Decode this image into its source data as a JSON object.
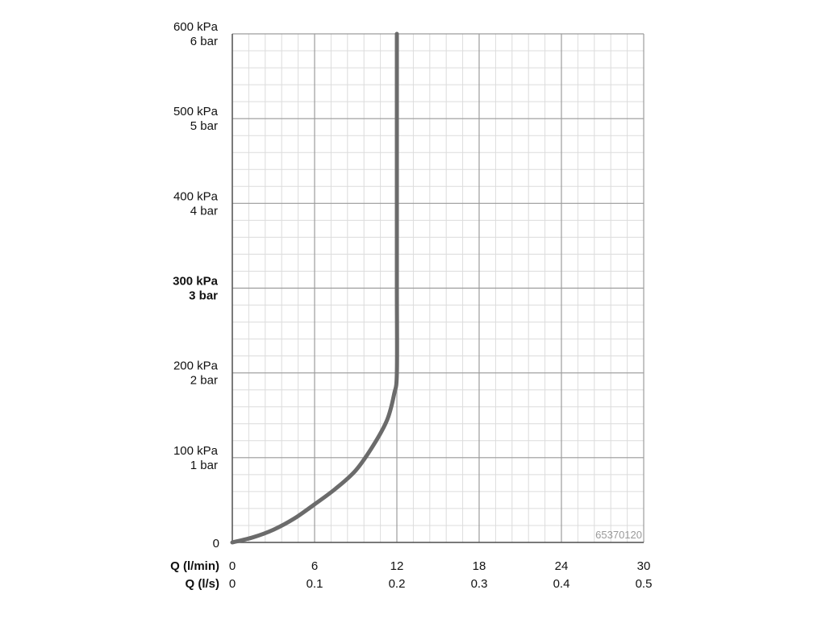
{
  "chart_data": {
    "type": "line",
    "title": "",
    "grid": true,
    "x_axis": {
      "range": [
        0,
        30
      ],
      "major_step": 6,
      "minor_step": 1.2,
      "primary_label": "Q (l/min)",
      "primary_ticks": [
        "0",
        "6",
        "12",
        "18",
        "24",
        "30"
      ],
      "secondary_label": "Q (l/s)",
      "secondary_ticks": [
        "0",
        "0.1",
        "0.2",
        "0.3",
        "0.4",
        "0.5"
      ]
    },
    "y_axis": {
      "range": [
        0,
        600
      ],
      "major_step": 100,
      "minor_step": 20,
      "zero_label": "0",
      "ticks": [
        {
          "value": 100,
          "kpa": "100 kPa",
          "bar": "1 bar",
          "bold": false
        },
        {
          "value": 200,
          "kpa": "200 kPa",
          "bar": "2 bar",
          "bold": false
        },
        {
          "value": 300,
          "kpa": "300 kPa",
          "bar": "3 bar",
          "bold": true
        },
        {
          "value": 400,
          "kpa": "400 kPa",
          "bar": "4 bar",
          "bold": false
        },
        {
          "value": 500,
          "kpa": "500 kPa",
          "bar": "5 bar",
          "bold": false
        },
        {
          "value": 600,
          "kpa": "600 kPa",
          "bar": "6 bar",
          "bold": false
        }
      ]
    },
    "series": [
      {
        "line_color": "#6b6b6b",
        "points": [
          {
            "x": 0,
            "y": 0
          },
          {
            "x": 1.5,
            "y": 6
          },
          {
            "x": 3,
            "y": 15
          },
          {
            "x": 4.5,
            "y": 28
          },
          {
            "x": 6,
            "y": 45
          },
          {
            "x": 7.5,
            "y": 63
          },
          {
            "x": 9,
            "y": 85
          },
          {
            "x": 10.3,
            "y": 115
          },
          {
            "x": 11.3,
            "y": 145
          },
          {
            "x": 11.8,
            "y": 175
          },
          {
            "x": 12,
            "y": 200
          },
          {
            "x": 12,
            "y": 300
          },
          {
            "x": 12,
            "y": 400
          },
          {
            "x": 12,
            "y": 500
          },
          {
            "x": 12,
            "y": 600
          }
        ]
      }
    ]
  },
  "watermark": "65370120",
  "colors": {
    "grid_major": "#9c9c9c",
    "grid_minor": "#dcdcdc",
    "axis": "#555555",
    "curve": "#6b6b6b"
  }
}
